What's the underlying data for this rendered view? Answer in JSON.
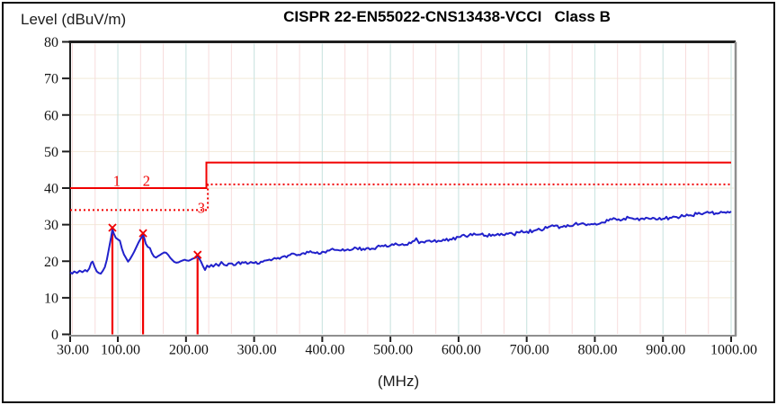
{
  "window": {
    "background": "#ffffff",
    "border_color": "#0a0a0a"
  },
  "header": {
    "y_axis_title": "Level (dBuV/m)",
    "title": "CISPR 22-EN55022-CNS13438-VCCI   Class B"
  },
  "x_axis_title": "(MHz)",
  "chart_data": {
    "type": "line",
    "title": "CISPR 22-EN55022-CNS13438-VCCI   Class B",
    "xlabel": "(MHz)",
    "ylabel": "Level (dBuV/m)",
    "x_range": [
      30,
      1000
    ],
    "y_range": [
      0,
      80
    ],
    "x_ticks": [
      30,
      100,
      200,
      300,
      400,
      500,
      600,
      700,
      800,
      900,
      1000
    ],
    "x_tick_labels": [
      "30.00",
      "100.00",
      "200.00",
      "300.00",
      "400.00",
      "500.00",
      "600.00",
      "700.00",
      "800.00",
      "900.00",
      "1000.00"
    ],
    "y_ticks": [
      0,
      10,
      20,
      30,
      40,
      50,
      60,
      70,
      80
    ],
    "y_tick_labels": [
      "0",
      "10",
      "20",
      "30",
      "40",
      "50",
      "60",
      "70",
      "80"
    ],
    "grid": {
      "h_color": "#f2ead8",
      "v_major_color": "#cfe6e3",
      "v_minor_color": "#f7dcdc",
      "v_major_step_mhz": 100,
      "v_minor_step_mhz": 33.333,
      "h_step_db": 10
    },
    "axis_colors": {
      "dark": "#1f1f1f",
      "light": "#8f8f8f",
      "tick_label": "#141414"
    },
    "limit_lines": [
      {
        "name": "class-b-limit-line",
        "style": "solid",
        "color": "#f10000",
        "points": [
          [
            30,
            40
          ],
          [
            230,
            40
          ],
          [
            230,
            47
          ],
          [
            1000,
            47
          ]
        ]
      },
      {
        "name": "margin-limit-line",
        "style": "dotted",
        "color": "#f10000",
        "points": [
          [
            30,
            34
          ],
          [
            232,
            34
          ],
          [
            232,
            41
          ],
          [
            1000,
            41
          ]
        ]
      }
    ],
    "series": [
      {
        "name": "emission-trace",
        "color": "#2121cb",
        "noise_db": 0.45,
        "points": [
          [
            30,
            17.0
          ],
          [
            33,
            16.6
          ],
          [
            36,
            17.2
          ],
          [
            40,
            16.8
          ],
          [
            44,
            17.4
          ],
          [
            48,
            17.0
          ],
          [
            52,
            17.6
          ],
          [
            55,
            17.2
          ],
          [
            58,
            18.0
          ],
          [
            61,
            19.6
          ],
          [
            63,
            19.9
          ],
          [
            66,
            18.4
          ],
          [
            69,
            17.2
          ],
          [
            72,
            16.8
          ],
          [
            75,
            16.6
          ],
          [
            78,
            17.4
          ],
          [
            81,
            18.4
          ],
          [
            84,
            20.5
          ],
          [
            87,
            23.5
          ],
          [
            90,
            26.5
          ],
          [
            92,
            28.8
          ],
          [
            94,
            27.6
          ],
          [
            97,
            26.4
          ],
          [
            100,
            26.0
          ],
          [
            103,
            25.6
          ],
          [
            106,
            23.4
          ],
          [
            109,
            21.8
          ],
          [
            112,
            20.9
          ],
          [
            115,
            19.9
          ],
          [
            118,
            20.6
          ],
          [
            121,
            21.6
          ],
          [
            124,
            22.6
          ],
          [
            127,
            23.8
          ],
          [
            130,
            25.0
          ],
          [
            133,
            26.0
          ],
          [
            135,
            26.6
          ],
          [
            137,
            27.3
          ],
          [
            139,
            26.2
          ],
          [
            141,
            24.8
          ],
          [
            144,
            23.9
          ],
          [
            147,
            23.6
          ],
          [
            150,
            22.2
          ],
          [
            153,
            21.3
          ],
          [
            156,
            21.0
          ],
          [
            159,
            21.4
          ],
          [
            162,
            21.7
          ],
          [
            165,
            22.1
          ],
          [
            168,
            22.4
          ],
          [
            171,
            22.3
          ],
          [
            174,
            21.7
          ],
          [
            177,
            20.9
          ],
          [
            180,
            20.3
          ],
          [
            183,
            19.8
          ],
          [
            186,
            19.6
          ],
          [
            189,
            19.7
          ],
          [
            192,
            20.0
          ],
          [
            195,
            20.2
          ],
          [
            198,
            20.4
          ],
          [
            201,
            20.2
          ],
          [
            204,
            20.1
          ],
          [
            207,
            20.4
          ],
          [
            210,
            20.7
          ],
          [
            213,
            20.9
          ],
          [
            215,
            21.1
          ],
          [
            217,
            21.4
          ],
          [
            219,
            20.9
          ],
          [
            222,
            19.9
          ],
          [
            225,
            18.6
          ],
          [
            228,
            17.6
          ],
          [
            231,
            18.8
          ],
          [
            234,
            18.4
          ],
          [
            237,
            19.0
          ],
          [
            240,
            18.5
          ],
          [
            244,
            19.3
          ],
          [
            248,
            18.7
          ],
          [
            252,
            19.8
          ],
          [
            256,
            19.0
          ],
          [
            260,
            18.8
          ],
          [
            265,
            19.4
          ],
          [
            270,
            18.9
          ],
          [
            275,
            19.5
          ],
          [
            280,
            19.2
          ],
          [
            285,
            19.6
          ],
          [
            290,
            19.3
          ],
          [
            295,
            19.8
          ],
          [
            300,
            19.5
          ],
          [
            310,
            19.9
          ],
          [
            320,
            20.3
          ],
          [
            330,
            20.9
          ],
          [
            340,
            21.1
          ],
          [
            350,
            21.6
          ],
          [
            360,
            21.9
          ],
          [
            370,
            22.1
          ],
          [
            380,
            22.4
          ],
          [
            390,
            22.2
          ],
          [
            400,
            22.6
          ],
          [
            410,
            22.9
          ],
          [
            420,
            23.1
          ],
          [
            430,
            23.3
          ],
          [
            440,
            23.0
          ],
          [
            450,
            23.6
          ],
          [
            460,
            23.4
          ],
          [
            470,
            23.2
          ],
          [
            480,
            23.9
          ],
          [
            490,
            24.1
          ],
          [
            500,
            24.3
          ],
          [
            510,
            24.6
          ],
          [
            520,
            24.4
          ],
          [
            530,
            24.9
          ],
          [
            538,
            26.3
          ],
          [
            542,
            24.9
          ],
          [
            550,
            25.1
          ],
          [
            560,
            25.3
          ],
          [
            570,
            25.6
          ],
          [
            580,
            25.7
          ],
          [
            590,
            25.9
          ],
          [
            600,
            26.6
          ],
          [
            610,
            26.9
          ],
          [
            620,
            27.1
          ],
          [
            630,
            27.3
          ],
          [
            640,
            27.0
          ],
          [
            650,
            27.3
          ],
          [
            660,
            27.1
          ],
          [
            670,
            27.6
          ],
          [
            680,
            27.4
          ],
          [
            690,
            27.9
          ],
          [
            700,
            28.1
          ],
          [
            710,
            28.3
          ],
          [
            720,
            28.6
          ],
          [
            730,
            29.1
          ],
          [
            740,
            29.6
          ],
          [
            750,
            29.4
          ],
          [
            760,
            29.9
          ],
          [
            770,
            30.1
          ],
          [
            780,
            30.3
          ],
          [
            790,
            30.1
          ],
          [
            800,
            30.3
          ],
          [
            810,
            30.6
          ],
          [
            820,
            31.1
          ],
          [
            830,
            31.6
          ],
          [
            840,
            31.3
          ],
          [
            850,
            31.9
          ],
          [
            860,
            31.5
          ],
          [
            870,
            31.7
          ],
          [
            880,
            31.6
          ],
          [
            890,
            31.4
          ],
          [
            900,
            31.6
          ],
          [
            910,
            31.9
          ],
          [
            920,
            32.1
          ],
          [
            930,
            32.3
          ],
          [
            940,
            32.6
          ],
          [
            950,
            32.9
          ],
          [
            960,
            33.1
          ],
          [
            970,
            33.3
          ],
          [
            980,
            33.0
          ],
          [
            990,
            33.4
          ],
          [
            1000,
            33.6
          ]
        ]
      }
    ],
    "markers": [
      {
        "label": "1",
        "freq": 92,
        "level": 28.8,
        "label_xy": [
          98.5,
          42.0
        ]
      },
      {
        "label": "2",
        "freq": 137,
        "level": 27.3,
        "label_xy": [
          142.0,
          42.0
        ]
      },
      {
        "label": "3",
        "freq": 217,
        "level": 21.4,
        "label_xy": [
          222.5,
          34.6
        ]
      }
    ],
    "marker_color": "#f10000",
    "legend": "none"
  }
}
